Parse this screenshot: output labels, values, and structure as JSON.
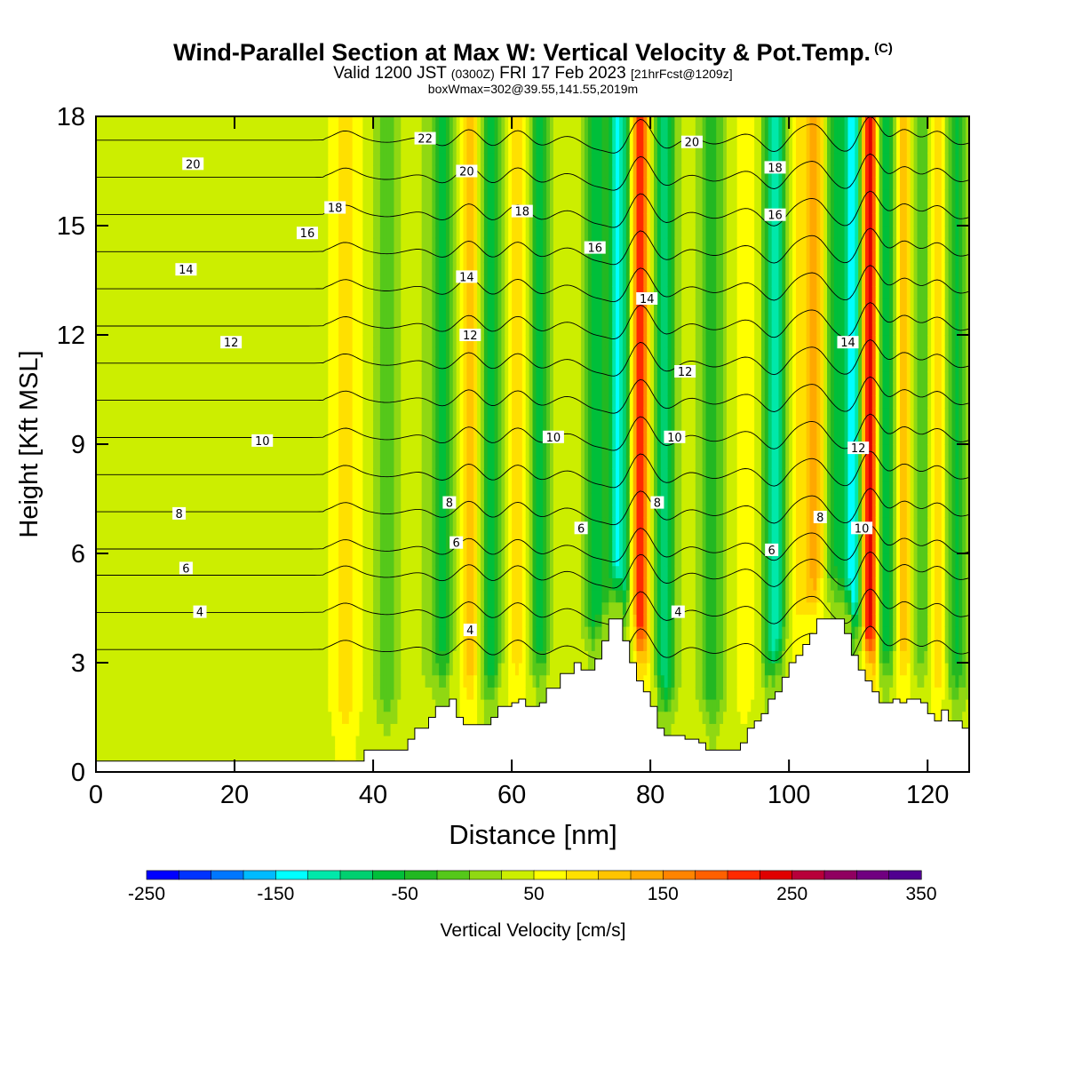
{
  "header": {
    "title_main": "Wind-Parallel Section at Max W: Vertical Velocity & Pot.Temp.",
    "title_mark": "(C)",
    "valid_prefix": "Valid 1200 JST",
    "valid_zulu": "(0300Z)",
    "valid_date": "FRI 17 Feb 2023",
    "forecast_info": "[21hrFcst@1209z]",
    "box_info": "boxWmax=302@39.55,141.55,2019m"
  },
  "chart_data": {
    "type": "heatmap",
    "xlabel": "Distance [nm]",
    "ylabel": "Height [Kft MSL]",
    "xlim": [
      0,
      126
    ],
    "ylim": [
      0,
      18
    ],
    "x_ticks": [
      "0",
      "20",
      "40",
      "60",
      "80",
      "100",
      "120"
    ],
    "y_ticks": [
      "0",
      "3",
      "6",
      "9",
      "12",
      "15",
      "18"
    ],
    "colorbar": {
      "label": "Vertical Velocity [cm/s]",
      "range": [
        -250,
        350
      ],
      "step": 25,
      "tick_labels": [
        "-250",
        "-150",
        "-50",
        "50",
        "150",
        "250",
        "350"
      ],
      "colors": [
        "#0000ff",
        "#0033ff",
        "#0077ff",
        "#00bbff",
        "#00ffff",
        "#00e8aa",
        "#00d070",
        "#00bf3a",
        "#22b822",
        "#55c81a",
        "#90d812",
        "#ccee00",
        "#ffff00",
        "#ffe000",
        "#ffc400",
        "#ffa800",
        "#ff8400",
        "#ff6000",
        "#ff2a00",
        "#e00000",
        "#b8003a",
        "#900060",
        "#700080",
        "#500090"
      ]
    },
    "w_columns": [
      {
        "x": 36,
        "w": 85
      },
      {
        "x": 42,
        "w": -20
      },
      {
        "x": 47,
        "w": 30
      },
      {
        "x": 50,
        "w": -60
      },
      {
        "x": 54,
        "w": 110
      },
      {
        "x": 57,
        "w": -70
      },
      {
        "x": 61,
        "w": 100
      },
      {
        "x": 64,
        "w": -60
      },
      {
        "x": 68,
        "w": 40
      },
      {
        "x": 72,
        "w": -70
      },
      {
        "x": 75.5,
        "w": -130
      },
      {
        "x": 78.5,
        "w": 220
      },
      {
        "x": 82,
        "w": -90
      },
      {
        "x": 86,
        "w": 30
      },
      {
        "x": 89,
        "w": -40
      },
      {
        "x": 94,
        "w": 60
      },
      {
        "x": 98,
        "w": -120
      },
      {
        "x": 101,
        "w": 80
      },
      {
        "x": 104,
        "w": 140
      },
      {
        "x": 106.5,
        "w": -60
      },
      {
        "x": 109.5,
        "w": -150
      },
      {
        "x": 111.5,
        "w": 302
      },
      {
        "x": 114,
        "w": -80
      },
      {
        "x": 116.5,
        "w": 130
      },
      {
        "x": 119,
        "w": -40
      },
      {
        "x": 121.5,
        "w": 110
      },
      {
        "x": 124,
        "w": -60
      }
    ],
    "theta_contour_levels": [
      4,
      6,
      8,
      10,
      12,
      14,
      16,
      18,
      20,
      22
    ],
    "contour_labels": [
      {
        "text": "20",
        "x": 14,
        "y": 16.7
      },
      {
        "text": "22",
        "x": 47.5,
        "y": 17.4
      },
      {
        "text": "20",
        "x": 53.5,
        "y": 16.5
      },
      {
        "text": "20",
        "x": 86,
        "y": 17.3
      },
      {
        "text": "18",
        "x": 34.5,
        "y": 15.5
      },
      {
        "text": "18",
        "x": 61.5,
        "y": 15.4
      },
      {
        "text": "18",
        "x": 98,
        "y": 16.6
      },
      {
        "text": "16",
        "x": 30.5,
        "y": 14.8
      },
      {
        "text": "16",
        "x": 72,
        "y": 14.4
      },
      {
        "text": "16",
        "x": 98,
        "y": 15.3
      },
      {
        "text": "14",
        "x": 13,
        "y": 13.8
      },
      {
        "text": "14",
        "x": 53.5,
        "y": 13.6
      },
      {
        "text": "14",
        "x": 79.5,
        "y": 13.0
      },
      {
        "text": "14",
        "x": 108.5,
        "y": 11.8
      },
      {
        "text": "12",
        "x": 19.5,
        "y": 11.8
      },
      {
        "text": "12",
        "x": 54,
        "y": 12.0
      },
      {
        "text": "12",
        "x": 85,
        "y": 11.0
      },
      {
        "text": "12",
        "x": 110,
        "y": 8.9
      },
      {
        "text": "10",
        "x": 24,
        "y": 9.1
      },
      {
        "text": "10",
        "x": 66,
        "y": 9.2
      },
      {
        "text": "10",
        "x": 83.5,
        "y": 9.2
      },
      {
        "text": "10",
        "x": 110.5,
        "y": 6.7
      },
      {
        "text": "8",
        "x": 12,
        "y": 7.1
      },
      {
        "text": "8",
        "x": 51,
        "y": 7.4
      },
      {
        "text": "8",
        "x": 81,
        "y": 7.4
      },
      {
        "text": "8",
        "x": 104.5,
        "y": 7.0
      },
      {
        "text": "6",
        "x": 13,
        "y": 5.6
      },
      {
        "text": "6",
        "x": 52,
        "y": 6.3
      },
      {
        "text": "6",
        "x": 70,
        "y": 6.7
      },
      {
        "text": "6",
        "x": 97.5,
        "y": 6.1
      },
      {
        "text": "4",
        "x": 15,
        "y": 4.4
      },
      {
        "text": "4",
        "x": 54,
        "y": 3.9
      },
      {
        "text": "4",
        "x": 84,
        "y": 4.4
      }
    ],
    "terrain_profile": [
      [
        0,
        0.3
      ],
      [
        38.7,
        0.3
      ],
      [
        38.7,
        0.6
      ],
      [
        45,
        0.6
      ],
      [
        45,
        0.9
      ],
      [
        46,
        0.9
      ],
      [
        46,
        1.2
      ],
      [
        48,
        1.2
      ],
      [
        48,
        1.5
      ],
      [
        49,
        1.5
      ],
      [
        49,
        1.8
      ],
      [
        51,
        1.8
      ],
      [
        51,
        2.0
      ],
      [
        52,
        2.0
      ],
      [
        52,
        1.5
      ],
      [
        53,
        1.5
      ],
      [
        53,
        1.3
      ],
      [
        57,
        1.3
      ],
      [
        57,
        1.5
      ],
      [
        58,
        1.5
      ],
      [
        58,
        1.8
      ],
      [
        60,
        1.8
      ],
      [
        60,
        1.9
      ],
      [
        61,
        1.9
      ],
      [
        61,
        2.0
      ],
      [
        62,
        2.0
      ],
      [
        62,
        1.8
      ],
      [
        64,
        1.8
      ],
      [
        64,
        1.9
      ],
      [
        65,
        1.9
      ],
      [
        65,
        2.3
      ],
      [
        67,
        2.3
      ],
      [
        67,
        2.7
      ],
      [
        69,
        2.7
      ],
      [
        69,
        3.0
      ],
      [
        70,
        3.0
      ],
      [
        70,
        2.8
      ],
      [
        72,
        2.8
      ],
      [
        72,
        3.1
      ],
      [
        73,
        3.1
      ],
      [
        73,
        3.6
      ],
      [
        74,
        3.6
      ],
      [
        74,
        4.2
      ],
      [
        76,
        4.2
      ],
      [
        76,
        3.6
      ],
      [
        77,
        3.6
      ],
      [
        77,
        3.0
      ],
      [
        78,
        3.0
      ],
      [
        78,
        2.5
      ],
      [
        79,
        2.5
      ],
      [
        79,
        2.2
      ],
      [
        80,
        2.2
      ],
      [
        80,
        1.8
      ],
      [
        81,
        1.8
      ],
      [
        81,
        1.2
      ],
      [
        82,
        1.2
      ],
      [
        82,
        1.0
      ],
      [
        85,
        1.0
      ],
      [
        85,
        0.9
      ],
      [
        87,
        0.9
      ],
      [
        87,
        0.8
      ],
      [
        88,
        0.8
      ],
      [
        88,
        0.6
      ],
      [
        93,
        0.6
      ],
      [
        93,
        0.8
      ],
      [
        94,
        0.8
      ],
      [
        94,
        1.2
      ],
      [
        95,
        1.2
      ],
      [
        95,
        1.4
      ],
      [
        96,
        1.4
      ],
      [
        96,
        1.6
      ],
      [
        97,
        1.6
      ],
      [
        97,
        2.0
      ],
      [
        98,
        2.0
      ],
      [
        98,
        2.2
      ],
      [
        99,
        2.2
      ],
      [
        99,
        2.6
      ],
      [
        100,
        2.6
      ],
      [
        100,
        3.0
      ],
      [
        101,
        3.0
      ],
      [
        101,
        3.2
      ],
      [
        102,
        3.2
      ],
      [
        102,
        3.5
      ],
      [
        103,
        3.5
      ],
      [
        103,
        3.8
      ],
      [
        104,
        3.8
      ],
      [
        104,
        4.2
      ],
      [
        108,
        4.2
      ],
      [
        108,
        3.8
      ],
      [
        109,
        3.8
      ],
      [
        109,
        3.2
      ],
      [
        110,
        3.2
      ],
      [
        110,
        2.8
      ],
      [
        111,
        2.8
      ],
      [
        111,
        2.5
      ],
      [
        112,
        2.5
      ],
      [
        112,
        2.2
      ],
      [
        113,
        2.2
      ],
      [
        113,
        1.9
      ],
      [
        115,
        1.9
      ],
      [
        115,
        2.0
      ],
      [
        116,
        2.0
      ],
      [
        116,
        1.9
      ],
      [
        117,
        1.9
      ],
      [
        117,
        2.0
      ],
      [
        119,
        2.0
      ],
      [
        119,
        1.9
      ],
      [
        120,
        1.9
      ],
      [
        120,
        1.6
      ],
      [
        121,
        1.6
      ],
      [
        121,
        1.4
      ],
      [
        122,
        1.4
      ],
      [
        122,
        1.7
      ],
      [
        123,
        1.7
      ],
      [
        123,
        1.4
      ],
      [
        125,
        1.4
      ],
      [
        125,
        1.2
      ],
      [
        126,
        1.2
      ]
    ]
  }
}
